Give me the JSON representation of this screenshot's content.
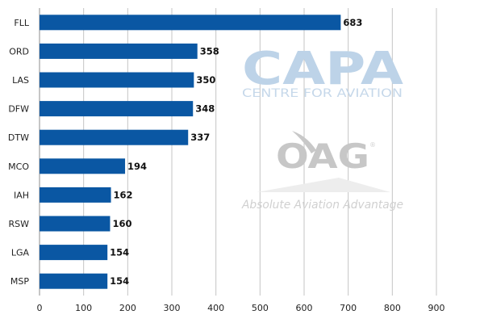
{
  "chart_data": {
    "type": "bar",
    "orientation": "horizontal",
    "categories": [
      "FLL",
      "ORD",
      "LAS",
      "DFW",
      "DTW",
      "MCO",
      "IAH",
      "RSW",
      "LGA",
      "MSP"
    ],
    "values": [
      683,
      358,
      350,
      348,
      337,
      194,
      162,
      160,
      154,
      154
    ],
    "data_labels": [
      "683",
      "358",
      "350",
      "348",
      "337",
      "194",
      "162",
      "160",
      "154",
      "154"
    ],
    "xlim": [
      0,
      900
    ],
    "xticks": [
      0,
      100,
      200,
      300,
      400,
      500,
      600,
      700,
      800,
      900
    ],
    "xtick_labels": [
      "0",
      "100",
      "200",
      "300",
      "400",
      "500",
      "600",
      "700",
      "800",
      "900"
    ],
    "grid": "vertical",
    "bar_color": "#0a57a3",
    "title": "",
    "xlabel": "",
    "ylabel": ""
  },
  "watermark": {
    "capa": "CAPA",
    "capa_sub": "CENTRE FOR AVIATION",
    "oag": "OAG",
    "oag_tagline": "Absolute Aviation Advantage",
    "registered_mark": "®"
  }
}
